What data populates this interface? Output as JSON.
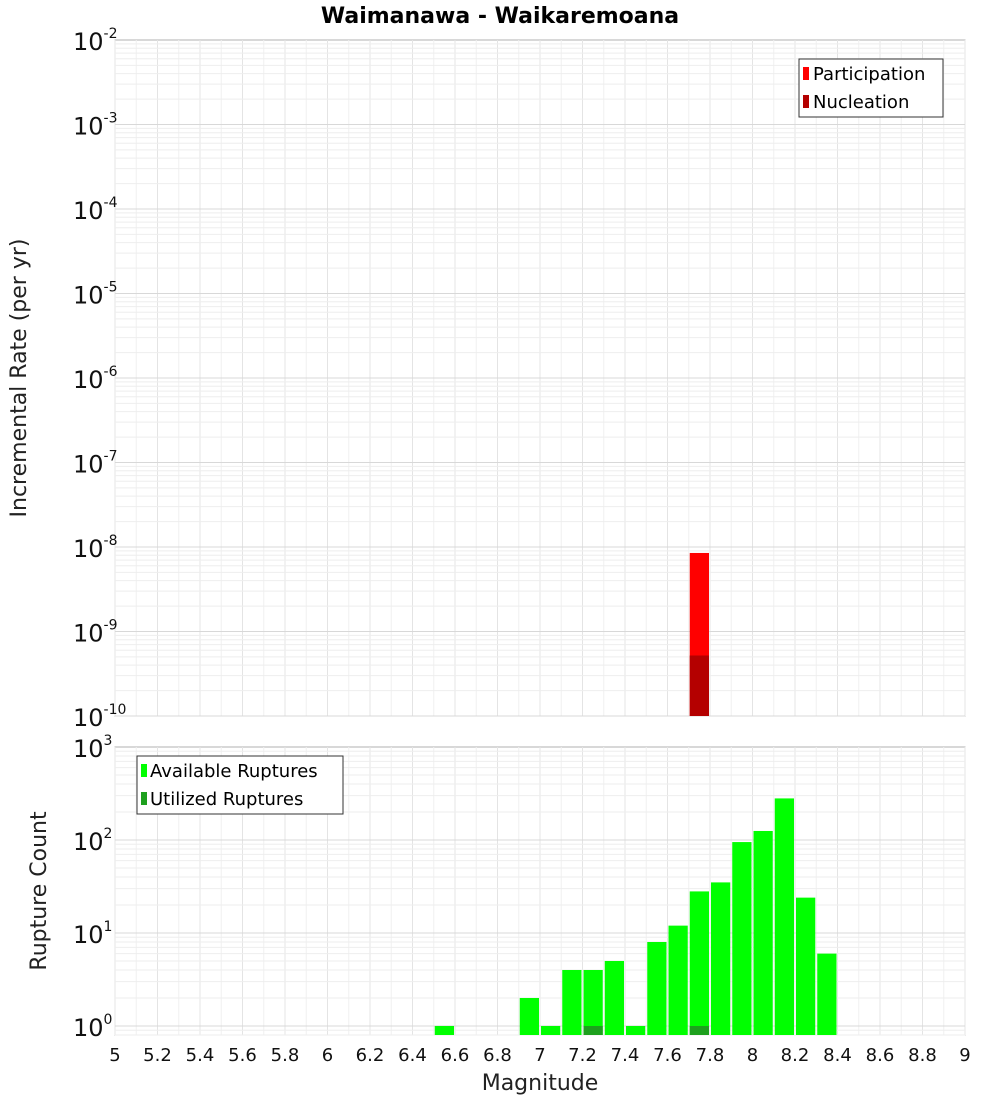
{
  "title": "Waimanawa - Waikaremoana",
  "chart_data": [
    {
      "type": "bar",
      "title": "Waimanawa - Waikaremoana",
      "ylabel": "Incremental Rate (per yr)",
      "xlabel": "",
      "y_scale": "log",
      "ylim": [
        1e-10,
        0.01
      ],
      "xlim": [
        5,
        9
      ],
      "grid": true,
      "legend": "top-right",
      "series": [
        {
          "name": "Participation",
          "color": "#ff0000",
          "x": [
            7.75
          ],
          "values": [
            8.5e-09
          ]
        },
        {
          "name": "Nucleation",
          "color": "#b40000",
          "x": [
            7.75
          ],
          "values": [
            5.2e-10
          ]
        }
      ],
      "ytick_labels": [
        {
          "base": "10",
          "exp": "-2"
        },
        {
          "base": "10",
          "exp": "-3"
        },
        {
          "base": "10",
          "exp": "-4"
        },
        {
          "base": "10",
          "exp": "-5"
        },
        {
          "base": "10",
          "exp": "-6"
        },
        {
          "base": "10",
          "exp": "-7"
        },
        {
          "base": "10",
          "exp": "-8"
        },
        {
          "base": "10",
          "exp": "-9"
        },
        {
          "base": "10",
          "exp": "-10"
        }
      ]
    },
    {
      "type": "bar",
      "ylabel": "Rupture Count",
      "xlabel": "Magnitude",
      "y_scale": "log",
      "ylim": [
        0.8,
        1000
      ],
      "xlim": [
        5,
        9
      ],
      "grid": true,
      "legend": "top-left",
      "series": [
        {
          "name": "Available Ruptures",
          "color": "#00ff00",
          "x": [
            6.55,
            6.95,
            7.05,
            7.15,
            7.25,
            7.35,
            7.45,
            7.55,
            7.65,
            7.75,
            7.85,
            7.95,
            8.05,
            8.15,
            8.25,
            8.35
          ],
          "values": [
            1,
            2,
            1,
            4,
            4,
            5,
            1,
            8,
            12,
            28,
            35,
            95,
            125,
            280,
            24,
            6
          ]
        },
        {
          "name": "Utilized Ruptures",
          "color": "#1ea01e",
          "x": [
            7.25,
            7.75
          ],
          "values": [
            1,
            1
          ]
        }
      ],
      "ytick_labels": [
        {
          "base": "10",
          "exp": "3"
        },
        {
          "base": "10",
          "exp": "2"
        },
        {
          "base": "10",
          "exp": "1"
        },
        {
          "base": "10",
          "exp": "0"
        }
      ],
      "xtick_labels": [
        "5",
        "5.2",
        "5.4",
        "5.6",
        "5.8",
        "6",
        "6.2",
        "6.4",
        "6.6",
        "6.8",
        "7",
        "7.2",
        "7.4",
        "7.6",
        "7.8",
        "8",
        "8.2",
        "8.4",
        "8.6",
        "8.8",
        "9"
      ]
    }
  ]
}
